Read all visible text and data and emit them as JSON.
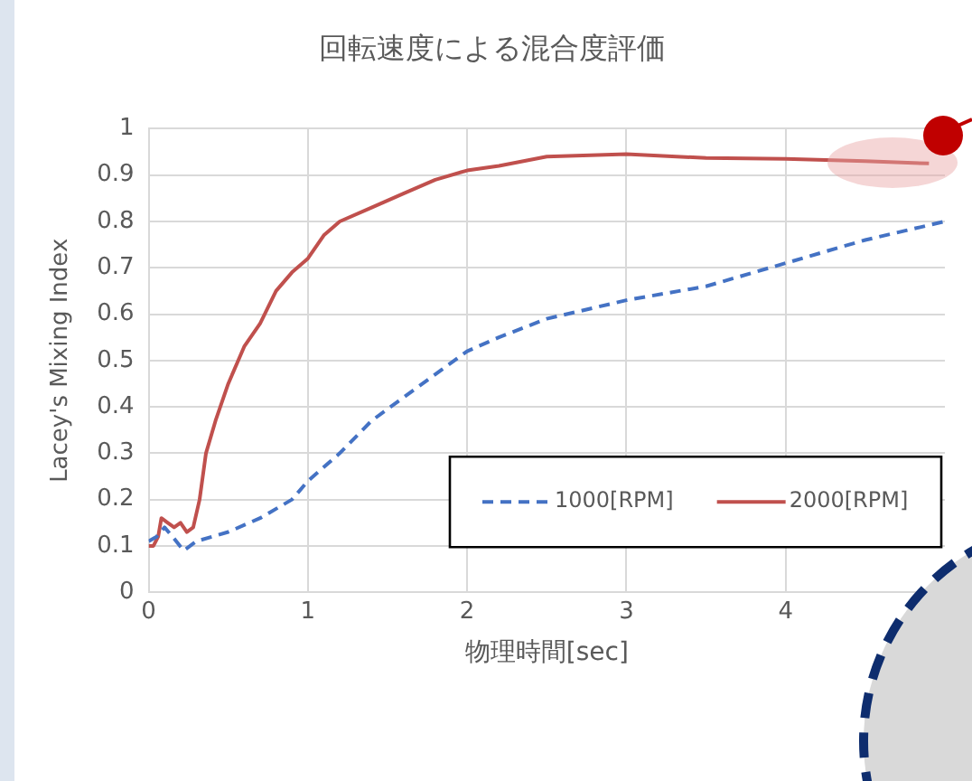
{
  "chart_data": {
    "type": "line",
    "title": "回転速度による混合度評価",
    "xlabel": "物理時間[sec]",
    "ylabel": "Lacey's Mixing Index",
    "xlim": [
      0,
      5
    ],
    "xticks": [
      0,
      1,
      2,
      3,
      4
    ],
    "ylim": [
      0,
      1
    ],
    "yticks": [
      0,
      0.1,
      0.2,
      0.3,
      0.4,
      0.5,
      0.6,
      0.7,
      0.8,
      0.9,
      1
    ],
    "grid": true,
    "legend": "bottom right",
    "marker": "none",
    "series": [
      {
        "name": "1000[RPM]",
        "color": "#4472c4",
        "line_style": "dashed",
        "x": [
          0,
          0.05,
          0.1,
          0.15,
          0.22,
          0.3,
          0.5,
          0.7,
          0.9,
          1.0,
          1.2,
          1.4,
          1.6,
          1.8,
          2.0,
          2.2,
          2.5,
          3.0,
          3.5,
          4.0,
          4.5,
          5.0
        ],
        "values": [
          0.11,
          0.12,
          0.14,
          0.12,
          0.09,
          0.11,
          0.13,
          0.16,
          0.2,
          0.24,
          0.3,
          0.37,
          0.42,
          0.47,
          0.52,
          0.55,
          0.59,
          0.63,
          0.66,
          0.71,
          0.76,
          0.8
        ]
      },
      {
        "name": "2000[RPM]",
        "color": "#c0504d",
        "line_style": "solid",
        "x": [
          0,
          0.03,
          0.06,
          0.08,
          0.12,
          0.16,
          0.2,
          0.24,
          0.28,
          0.32,
          0.36,
          0.42,
          0.5,
          0.6,
          0.7,
          0.8,
          0.9,
          1.0,
          1.1,
          1.2,
          1.4,
          1.6,
          1.8,
          2.0,
          2.2,
          2.5,
          3.0,
          3.5,
          4.0,
          4.5,
          4.9
        ],
        "values": [
          0.1,
          0.1,
          0.12,
          0.16,
          0.15,
          0.14,
          0.15,
          0.13,
          0.14,
          0.2,
          0.3,
          0.37,
          0.45,
          0.53,
          0.58,
          0.65,
          0.69,
          0.72,
          0.77,
          0.8,
          0.83,
          0.86,
          0.89,
          0.91,
          0.92,
          0.94,
          0.945,
          0.937,
          0.935,
          0.93,
          0.925
        ]
      }
    ]
  }
}
